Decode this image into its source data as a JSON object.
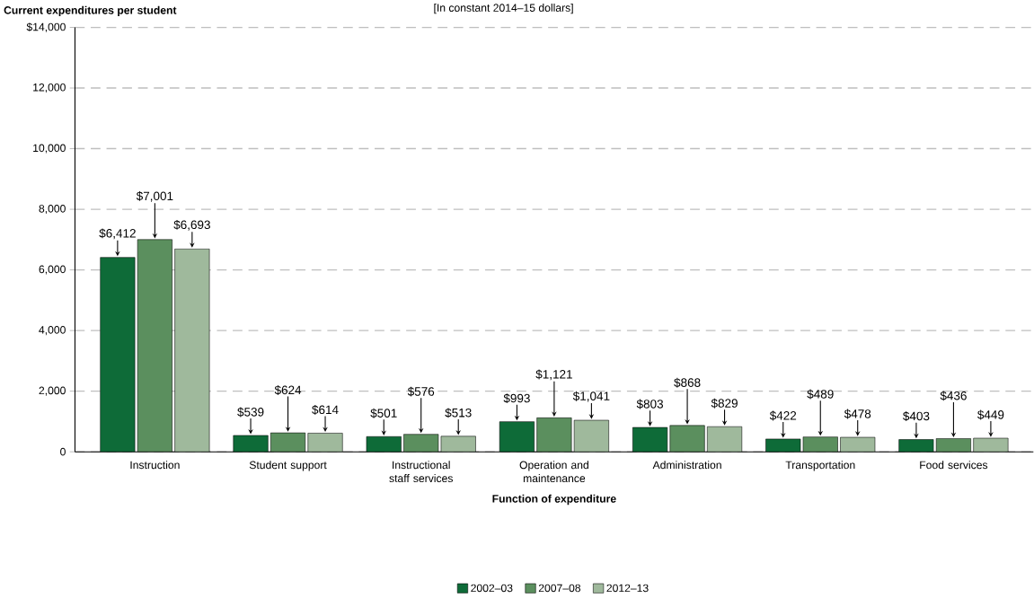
{
  "chart_data": {
    "type": "bar",
    "ylabel": "Current expenditures per student",
    "subtitle": "[In constant 2014–15 dollars]",
    "xlabel": "Function of expenditure",
    "categories": [
      "Instruction",
      "Student support",
      "Instructional staff services",
      "Operation and maintenance",
      "Administration",
      "Transportation",
      "Food services"
    ],
    "series": [
      {
        "name": "2002–03",
        "color": "#0e6b38",
        "values": [
          6412,
          539,
          501,
          993,
          803,
          422,
          403
        ],
        "value_labels": [
          "$6,412",
          "$539",
          "$501",
          "$993",
          "$803",
          "$422",
          "$403"
        ]
      },
      {
        "name": "2007–08",
        "color": "#5b8f5e",
        "values": [
          7001,
          624,
          576,
          1121,
          868,
          489,
          436
        ],
        "value_labels": [
          "$7,001",
          "$624",
          "$576",
          "$1,121",
          "$868",
          "$489",
          "$436"
        ]
      },
      {
        "name": "2012–13",
        "color": "#9fb99c",
        "values": [
          6693,
          614,
          513,
          1041,
          829,
          478,
          449
        ],
        "value_labels": [
          "$6,693",
          "$614",
          "$513",
          "$1,041",
          "$829",
          "$478",
          "$449"
        ]
      }
    ],
    "ylim": [
      0,
      14000
    ],
    "yticks": [
      0,
      {
        "value": 2000,
        "label": "2,000"
      },
      {
        "value": 4000,
        "label": "4,000"
      },
      {
        "value": 6000,
        "label": "6,000"
      },
      {
        "value": 8000,
        "label": "8,000"
      },
      {
        "value": 10000,
        "label": "10,000"
      },
      {
        "value": 12000,
        "label": "12,000"
      },
      {
        "value": 14000,
        "label": "$14,000"
      }
    ],
    "grid": "y",
    "legend": "bottom"
  }
}
